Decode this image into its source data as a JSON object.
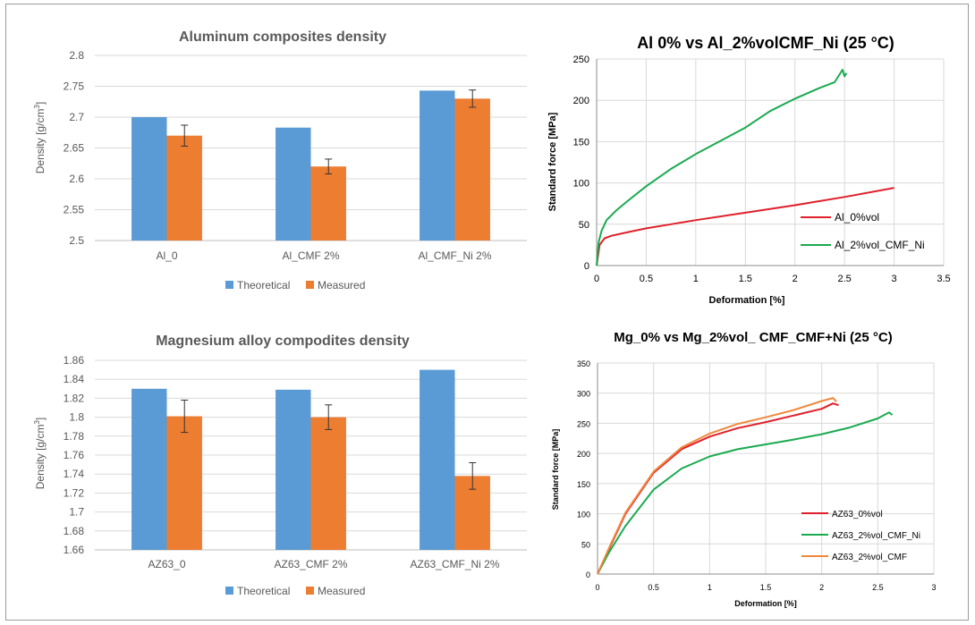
{
  "chart_data": [
    {
      "type": "bar",
      "title": "Aluminum composites density",
      "xlabel": "",
      "ylabel": "Density [g/cm³]",
      "ylim": [
        2.5,
        2.8
      ],
      "yticks": [
        "2.8",
        "2.75",
        "2.7",
        "2.65",
        "2.6",
        "2.55",
        "2.5"
      ],
      "categories": [
        "Al_0",
        "Al_CMF 2%",
        "Al_CMF_Ni 2%"
      ],
      "series": [
        {
          "name": "Theoretical",
          "color": "#5b9bd5",
          "values": [
            2.7,
            2.683,
            2.743
          ]
        },
        {
          "name": "Measured",
          "color": "#ed7d31",
          "values": [
            2.67,
            2.62,
            2.73
          ],
          "errors": [
            0.017,
            0.012,
            0.014
          ]
        }
      ],
      "grid": true,
      "legend": "bottom"
    },
    {
      "type": "line",
      "title": "Al 0% vs Al_2%volCMF_Ni (25 °C)",
      "xlabel": "Deformation [%]",
      "ylabel": "Standard force [MPa]",
      "xlim": [
        0,
        3.5
      ],
      "ylim": [
        0,
        250
      ],
      "xticks": [
        "0",
        "0.5",
        "1",
        "1.5",
        "2",
        "2.5",
        "3",
        "3.5"
      ],
      "yticks": [
        "0",
        "50",
        "100",
        "150",
        "200",
        "250"
      ],
      "series": [
        {
          "name": "Al_0%vol",
          "color": "#e0202a",
          "x": [
            0,
            0.03,
            0.08,
            0.15,
            0.3,
            0.5,
            0.75,
            1.0,
            1.5,
            2.0,
            2.5,
            3.0
          ],
          "y": [
            0,
            25,
            33,
            36,
            40,
            45,
            50,
            55,
            64,
            73,
            83,
            94
          ]
        },
        {
          "name": "Al_2%vol_CMF_Ni",
          "color": "#1aaa50",
          "x": [
            0,
            0.02,
            0.05,
            0.1,
            0.2,
            0.3,
            0.5,
            0.75,
            1.0,
            1.25,
            1.5,
            1.75,
            2.0,
            2.25,
            2.4,
            2.48,
            2.5,
            2.52
          ],
          "y": [
            0,
            28,
            42,
            55,
            67,
            77,
            96,
            117,
            135,
            151,
            167,
            187,
            202,
            215,
            222,
            237,
            229,
            233
          ]
        }
      ],
      "grid": true,
      "legend": "inside right"
    },
    {
      "type": "bar",
      "title": "Magnesium alloy compodites density",
      "xlabel": "",
      "ylabel": "Density [g/cm³]",
      "ylim": [
        1.66,
        1.86
      ],
      "yticks": [
        "1.86",
        "1.84",
        "1.82",
        "1.8",
        "1.78",
        "1.76",
        "1.74",
        "1.72",
        "1.7",
        "1.68",
        "1.66"
      ],
      "categories": [
        "AZ63_0",
        "AZ63_CMF 2%",
        "AZ63_CMF_Ni 2%"
      ],
      "series": [
        {
          "name": "Theoretical",
          "color": "#5b9bd5",
          "values": [
            1.83,
            1.829,
            1.85
          ]
        },
        {
          "name": "Measured",
          "color": "#ed7d31",
          "values": [
            1.801,
            1.8,
            1.738
          ],
          "errors": [
            0.017,
            0.013,
            0.014
          ]
        }
      ],
      "grid": true,
      "legend": "bottom"
    },
    {
      "type": "line",
      "title": "Mg_0% vs Mg_2%vol_ CMF_CMF+Ni (25 °C)",
      "xlabel": "Deformation [%]",
      "ylabel": "Standard force [MPa]",
      "xlim": [
        0,
        3
      ],
      "ylim": [
        0,
        350
      ],
      "xticks": [
        "0",
        "0.5",
        "1",
        "1.5",
        "2",
        "2.5",
        "3"
      ],
      "yticks": [
        "0",
        "50",
        "100",
        "150",
        "200",
        "250",
        "300",
        "350"
      ],
      "series": [
        {
          "name": "AZ63_0%vol",
          "color": "#e0202a",
          "x": [
            0,
            0.1,
            0.25,
            0.5,
            0.75,
            1.0,
            1.25,
            1.5,
            1.75,
            2.0,
            2.1,
            2.15
          ],
          "y": [
            0,
            40,
            100,
            168,
            207,
            228,
            242,
            252,
            263,
            274,
            283,
            280
          ]
        },
        {
          "name": "AZ63_2%vol_CMF_Ni",
          "color": "#1aaa50",
          "x": [
            0,
            0.1,
            0.25,
            0.5,
            0.75,
            1.0,
            1.25,
            1.5,
            1.75,
            2.0,
            2.25,
            2.5,
            2.6,
            2.63
          ],
          "y": [
            0,
            35,
            80,
            140,
            175,
            195,
            207,
            215,
            223,
            232,
            243,
            258,
            268,
            264
          ]
        },
        {
          "name": "AZ63_2%vol_CMF",
          "color": "#f0883c",
          "x": [
            0,
            0.1,
            0.25,
            0.5,
            0.75,
            1.0,
            1.25,
            1.5,
            1.75,
            2.0,
            2.1,
            2.13
          ],
          "y": [
            0,
            42,
            102,
            170,
            210,
            233,
            249,
            260,
            272,
            287,
            292,
            286
          ]
        }
      ],
      "grid": true,
      "legend": "inside right"
    }
  ]
}
